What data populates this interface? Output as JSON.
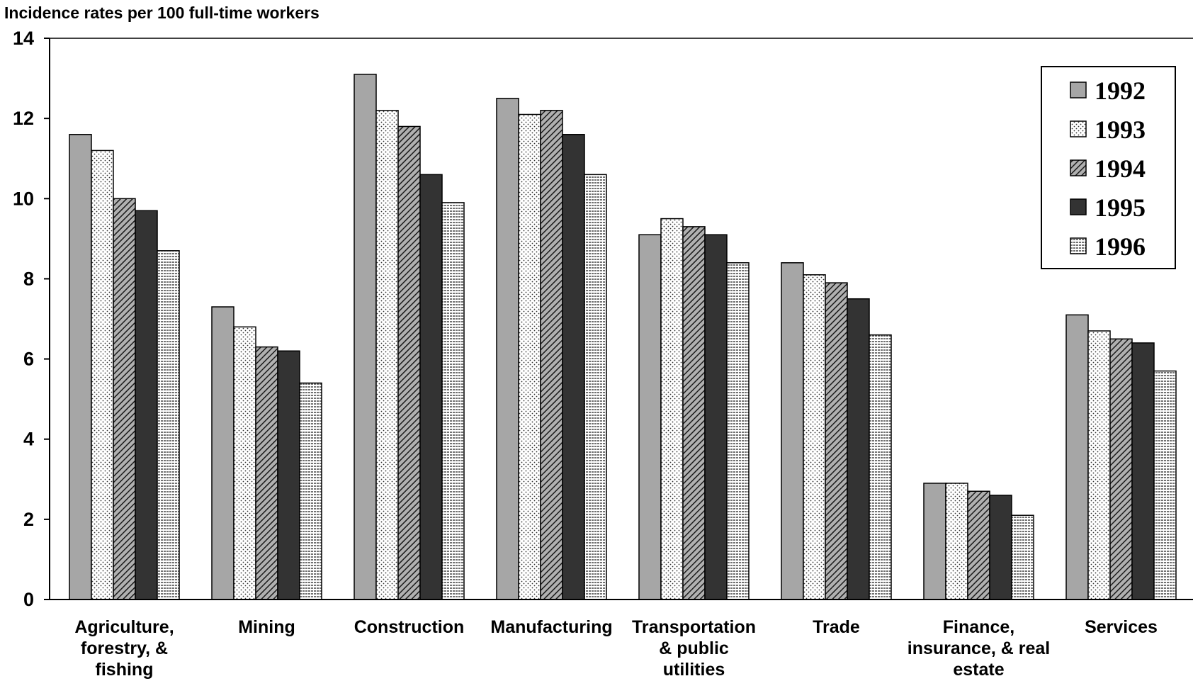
{
  "chart_data": {
    "type": "bar",
    "ylabel": "Incidence rates per 100 full-time workers",
    "xlabel": "",
    "ylim": [
      0,
      14
    ],
    "yticks": [
      0,
      2,
      4,
      6,
      8,
      10,
      12,
      14
    ],
    "grid": false,
    "legend_position": "top-right",
    "categories": [
      [
        "Agriculture,",
        "forestry, &",
        "fishing"
      ],
      [
        "Mining"
      ],
      [
        "Construction"
      ],
      [
        "Manufacturing"
      ],
      [
        "Transportation",
        "& public",
        "utilities"
      ],
      [
        "Trade"
      ],
      [
        "Finance,",
        "insurance, & real",
        "estate"
      ],
      [
        "Services"
      ]
    ],
    "series": [
      {
        "name": "1992",
        "pattern": "solid-gray",
        "color": "#a6a6a6",
        "values": [
          11.6,
          7.3,
          13.1,
          12.5,
          9.1,
          8.4,
          2.9,
          7.1
        ]
      },
      {
        "name": "1993",
        "pattern": "dots",
        "color": "#ffffff",
        "values": [
          11.2,
          6.8,
          12.2,
          12.1,
          9.5,
          8.1,
          2.9,
          6.7
        ]
      },
      {
        "name": "1994",
        "pattern": "diagonal-hatch",
        "color": "#888888",
        "values": [
          10.0,
          6.3,
          11.8,
          12.2,
          9.3,
          7.9,
          2.7,
          6.5
        ]
      },
      {
        "name": "1995",
        "pattern": "solid-dark",
        "color": "#333333",
        "values": [
          9.7,
          6.2,
          10.6,
          11.6,
          9.1,
          7.5,
          2.6,
          6.4
        ]
      },
      {
        "name": "1996",
        "pattern": "horizontal-lines",
        "color": "#ffffff",
        "values": [
          8.7,
          5.4,
          9.9,
          10.6,
          8.4,
          6.6,
          2.1,
          5.7
        ]
      }
    ]
  }
}
